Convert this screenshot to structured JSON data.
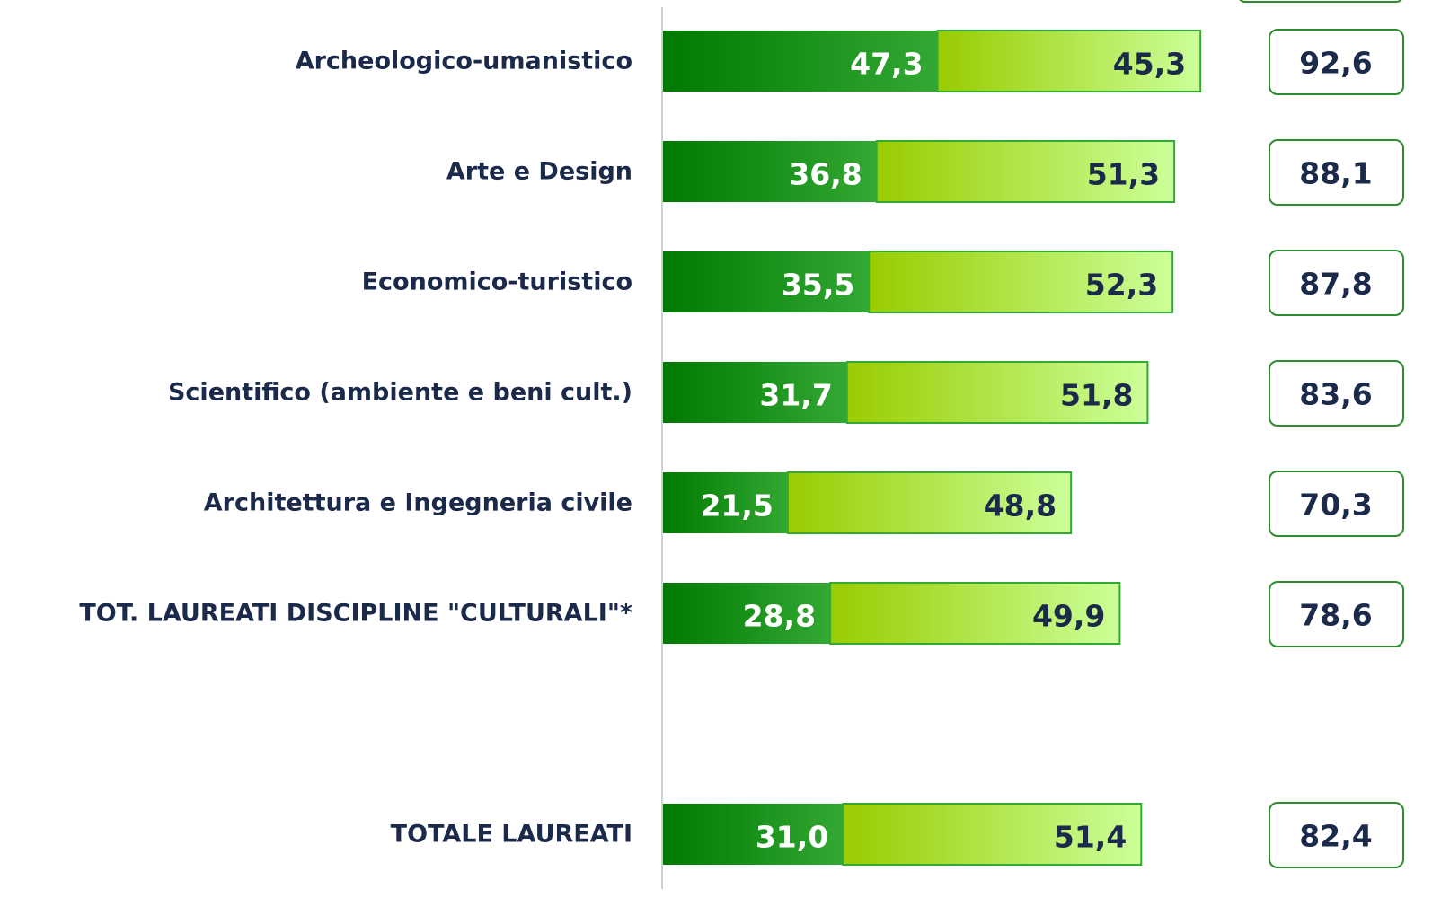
{
  "chart_data": {
    "type": "stacked-bar-horizontal",
    "categories": [
      "Archeologico-umanistico",
      "Arte e Design",
      "Economico-turistico",
      "Scientifico (ambiente e beni cult.)",
      "Architettura e Ingegneria civile",
      "TOT. LAUREATI DISCIPLINE \"CULTURALI\"*",
      "TOTALE LAUREATI"
    ],
    "series": [
      {
        "color": "#007a00",
        "values": [
          47.3,
          36.8,
          35.5,
          31.7,
          21.5,
          28.8,
          31.0
        ],
        "value_labels": [
          "47,3",
          "36,8",
          "35,5",
          "31,7",
          "21,5",
          "28,8",
          "31,0"
        ]
      },
      {
        "color": "#99cc00",
        "values": [
          45.3,
          51.3,
          52.3,
          51.8,
          48.8,
          49.9,
          51.4
        ],
        "value_labels": [
          "45,3",
          "51,3",
          "52,3",
          "51,8",
          "48,8",
          "49,9",
          "51,4"
        ]
      }
    ],
    "totals": [
      92.6,
      88.1,
      87.8,
      83.6,
      70.3,
      78.6,
      82.4
    ],
    "total_labels": [
      "92,6",
      "88,1",
      "87,8",
      "83,6",
      "70,3",
      "78,6",
      "82,4"
    ]
  }
}
